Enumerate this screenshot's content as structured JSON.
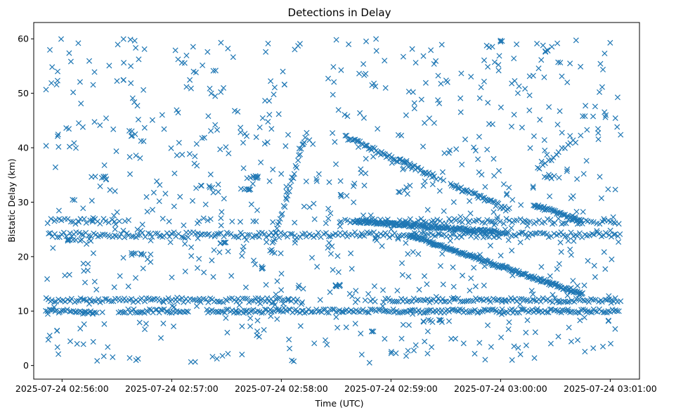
{
  "chart_data": {
    "type": "scatter",
    "title": "Detections in Delay",
    "xlabel": "Time (UTC)",
    "ylabel": "Bistatic Delay (km)",
    "marker": "x",
    "color": "#1f77b4",
    "xlim_seconds": [
      -15.5,
      316.0
    ],
    "ylim": [
      -2.5,
      63.0
    ],
    "x_origin": "2025-07-24 02:56:00",
    "x_ticks": [
      {
        "t": 0,
        "label": "2025-07-24 02:56:00"
      },
      {
        "t": 60,
        "label": "2025-07-24 02:57:00"
      },
      {
        "t": 120,
        "label": "2025-07-24 02:58:00"
      },
      {
        "t": 180,
        "label": "2025-07-24 02:59:00"
      },
      {
        "t": 240,
        "label": "2025-07-24 03:00:00"
      },
      {
        "t": 300,
        "label": "2025-07-24 03:01:00"
      }
    ],
    "y_ticks": [
      {
        "v": 0,
        "label": "0"
      },
      {
        "v": 10,
        "label": "10"
      },
      {
        "v": 20,
        "label": "20"
      },
      {
        "v": 30,
        "label": "30"
      },
      {
        "v": 40,
        "label": "40"
      },
      {
        "v": 50,
        "label": "50"
      },
      {
        "v": 60,
        "label": "60"
      }
    ],
    "time_range_seconds": [
      -9,
      306
    ],
    "tracks": [
      {
        "name": "track-10-low",
        "t_start": -9,
        "t_end": 306,
        "y_start": 10.0,
        "y_end": 10.0,
        "step": 1.0,
        "spread": 0.35,
        "gaps": [
          [
            20,
            30
          ],
          [
            70,
            78
          ]
        ]
      },
      {
        "name": "track-12",
        "t_start": -9,
        "t_end": 306,
        "y_start": 12.0,
        "y_end": 12.0,
        "step": 1.2,
        "spread": 0.4,
        "gaps": [
          [
            130,
            175
          ]
        ]
      },
      {
        "name": "track-24",
        "t_start": -9,
        "t_end": 306,
        "y_start": 24.0,
        "y_end": 24.0,
        "step": 1.3,
        "spread": 0.5,
        "gaps": []
      },
      {
        "name": "track-26-5",
        "t_start": -9,
        "t_end": 306,
        "y_start": 26.5,
        "y_end": 26.5,
        "step": 1.5,
        "spread": 0.5,
        "gaps": [
          [
            30,
            150
          ]
        ]
      },
      {
        "name": "track-desc-26",
        "t_start": 160,
        "t_end": 240,
        "y_start": 26.5,
        "y_end": 24.5,
        "step": 0.5,
        "spread": 0.3,
        "gaps": []
      },
      {
        "name": "track-desc-42",
        "t_start": 155,
        "t_end": 245,
        "y_start": 42.0,
        "y_end": 28.5,
        "step": 0.8,
        "spread": 0.4,
        "gaps": [
          [
            205,
            212
          ]
        ]
      },
      {
        "name": "track-desc-24",
        "t_start": 190,
        "t_end": 285,
        "y_start": 24.0,
        "y_end": 13.0,
        "step": 0.5,
        "spread": 0.3,
        "gaps": []
      },
      {
        "name": "track-desc-29",
        "t_start": 258,
        "t_end": 285,
        "y_start": 29.5,
        "y_end": 26.5,
        "step": 0.6,
        "spread": 0.3,
        "gaps": []
      },
      {
        "name": "track-asc-20-43",
        "t_start": 114,
        "t_end": 134,
        "y_start": 21.0,
        "y_end": 43.0,
        "step": 0.6,
        "spread": 0.5,
        "gaps": []
      },
      {
        "name": "track-asc-35-42",
        "t_start": 260,
        "t_end": 280,
        "y_start": 36.0,
        "y_end": 41.5,
        "step": 1.5,
        "spread": 0.4,
        "gaps": []
      }
    ],
    "clusters": [
      {
        "t": 20,
        "y": 34.6,
        "n": 6,
        "dt": 4
      },
      {
        "t": 77,
        "y": 32.8,
        "n": 5,
        "dt": 4
      },
      {
        "t": 87,
        "y": 22.5,
        "n": 5,
        "dt": 3
      },
      {
        "t": 100,
        "y": 32.3,
        "n": 5,
        "dt": 3
      },
      {
        "t": 107,
        "y": 34.6,
        "n": 8,
        "dt": 5
      },
      {
        "t": 150,
        "y": 14.7,
        "n": 7,
        "dt": 3
      },
      {
        "t": 154,
        "y": 31.2,
        "n": 4,
        "dt": 2
      },
      {
        "t": 110,
        "y": 18.0,
        "n": 4,
        "dt": 1
      },
      {
        "t": 265,
        "y": 57.8,
        "n": 4,
        "dt": 1
      },
      {
        "t": 268,
        "y": 34.6,
        "n": 6,
        "dt": 4
      },
      {
        "t": 240,
        "y": 59.5,
        "n": 3,
        "dt": 1
      },
      {
        "t": 205,
        "y": 8.2,
        "n": 10,
        "dt": 8
      },
      {
        "t": 8,
        "y": 23.0,
        "n": 10,
        "dt": 8
      },
      {
        "t": 40,
        "y": 20.5,
        "n": 6,
        "dt": 5
      }
    ],
    "noise": {
      "count": 760,
      "y_min": 0.5,
      "y_max": 60.0,
      "seed": 24071
    }
  }
}
